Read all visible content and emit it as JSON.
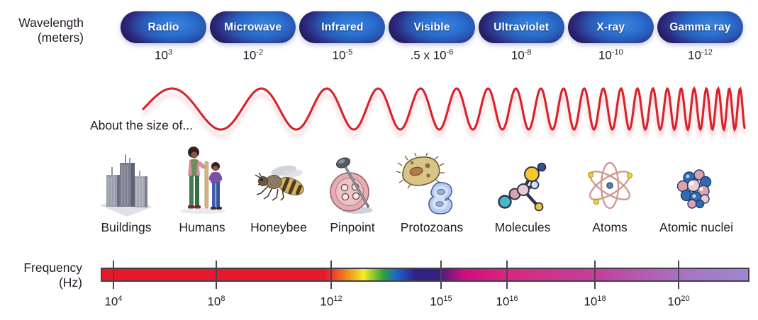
{
  "wavelength_axis": {
    "label_line1": "Wavelength",
    "label_line2": "(meters)"
  },
  "bands": [
    {
      "label": "Radio",
      "value_prefix": "",
      "value_base": "10",
      "value_exp": "3"
    },
    {
      "label": "Microwave",
      "value_prefix": "",
      "value_base": "10",
      "value_exp": "-2"
    },
    {
      "label": "Infrared",
      "value_prefix": "",
      "value_base": "10",
      "value_exp": "-5"
    },
    {
      "label": "Visible",
      "value_prefix": ".5 x ",
      "value_base": "10",
      "value_exp": "-6"
    },
    {
      "label": "Ultraviolet",
      "value_prefix": "",
      "value_base": "10",
      "value_exp": "-8"
    },
    {
      "label": "X-ray",
      "value_prefix": "",
      "value_base": "10",
      "value_exp": "-10"
    },
    {
      "label": "Gamma ray",
      "value_prefix": "",
      "value_base": "10",
      "value_exp": "-12"
    }
  ],
  "size_row": {
    "caption": "About the size of...",
    "items": [
      {
        "label": "Buildings",
        "icon": "buildings-icon"
      },
      {
        "label": "Humans",
        "icon": "humans-icon"
      },
      {
        "label": "Honeybee",
        "icon": "honeybee-icon"
      },
      {
        "label": "Pinpoint",
        "icon": "pinpoint-icon"
      },
      {
        "label": "Protozoans",
        "icon": "protozoans-icon"
      },
      {
        "label": "Molecules",
        "icon": "molecules-icon"
      },
      {
        "label": "Atoms",
        "icon": "atoms-icon"
      },
      {
        "label": "Atomic nuclei",
        "icon": "atomic-nuclei-icon"
      }
    ]
  },
  "frequency_axis": {
    "label_line1": "Frequency",
    "label_line2": "(Hz)",
    "ticks": [
      {
        "base": "10",
        "exp": "4"
      },
      {
        "base": "10",
        "exp": "8"
      },
      {
        "base": "10",
        "exp": "12"
      },
      {
        "base": "10",
        "exp": "15"
      },
      {
        "base": "10",
        "exp": "16"
      },
      {
        "base": "10",
        "exp": "18"
      },
      {
        "base": "10",
        "exp": "20"
      }
    ]
  },
  "colors": {
    "text_dark": "#231a26",
    "wave_red": "#d8232c",
    "wave_shadow_pink": "#f0b9bd",
    "pill_core_blue": "#3b86dc",
    "pill_mid_blue": "#2a55b0",
    "pill_edge_navy": "#201048",
    "bar_red": "#e6192b",
    "bar_orange": "#f08c22",
    "bar_yellow": "#f5ee26",
    "bar_green": "#2fa33c",
    "bar_blue": "#1f66cc",
    "bar_indigo": "#2f2384",
    "bar_magenta": "#cf0e7e",
    "bar_pink": "#d6287f",
    "bar_lavender_end": "#9d87cf",
    "tick_color": "#4a4450"
  }
}
